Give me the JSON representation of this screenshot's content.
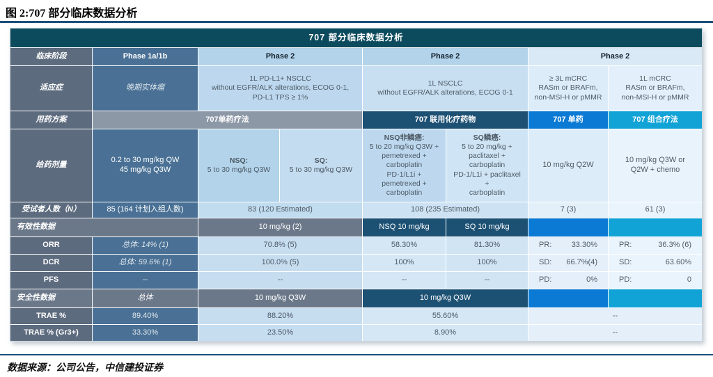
{
  "page": {
    "title": "图 2:707 部分临床数据分析",
    "source": "数据来源：公司公告，中信建投证券"
  },
  "colors": {
    "header_teal": "#0c4a5d",
    "navy": "#1d5174",
    "bright_blue": "#0b7ad4",
    "cyan": "#11a3d6",
    "steel_blue": "#4a7195",
    "label_gray": "#5d6b7e",
    "rule_navy": "#1f4e79"
  },
  "t": {
    "title": "707  部分临床数据分析",
    "phase": {
      "label": "临床阶段",
      "c1": "Phase 1a/1b",
      "g1": "Phase 2",
      "g2": "Phase 2",
      "g3": "Phase 2"
    },
    "ind": {
      "label": "适应症",
      "c1": "晚期实体瘤",
      "g1": "1L PD-L1+ NSCLC\nwithout EGFR/ALK alterations, ECOG 0-1,\nPD-L1 TPS ≥ 1%",
      "g2": "1L NSCLC\nwithout EGFR/ALK alterations, ECOG 0-1",
      "c6": "≥ 3L mCRC\nRASm or BRAFm,\nnon-MSI-H or pMMR",
      "c7": "1L mCRC\nRASm or BRAFm,\nnon-MSI-H or pMMR"
    },
    "reg": {
      "label": "用药方案",
      "mono": "707单药疗法",
      "combo": "707 联用化疗药物",
      "mcrc_mono": "707 单药",
      "mcrc_combo": "707 组合疗法"
    },
    "dose": {
      "label": "给药剂量",
      "c1": "0.2 to 30 mg/kg QW\n45 mg/kg Q3W",
      "nsq_h": "NSQ:",
      "nsq_b": "5 to 30 mg/kg Q3W",
      "sq_h": "SQ:",
      "sq_b": "5 to 30 mg/kg Q3W",
      "nsqc_h": "NSQ非鳞癌:",
      "nsqc_b": "5 to 20 mg/kg Q3W +\npemetrexed +\ncarboplatin\nPD-1/L1i +\npemetrexed +\ncarboplatin",
      "sqc_h": "SQ鳞癌:",
      "sqc_b": "5 to 20 mg/kg +\npaclitaxel +\ncarboplatin\nPD-1/L1i + paclitaxel\n+\ncarboplatin",
      "c6": "10 mg/kg Q2W",
      "c7": "10 mg/kg Q3W or\nQ2W + chemo"
    },
    "n": {
      "label": "受试者人数（N）",
      "c1": "85 (164 计划入组人数)",
      "g1": "83 (120 Estimated)",
      "g2": "108 (235 Estimated)",
      "c6": "7 (3)",
      "c7": "61 (3)"
    },
    "eff": {
      "label": "有效性数据",
      "g1": "10 mg/kg (2)",
      "nsq": "NSQ 10 mg/kg",
      "sq": "SQ 10 mg/kg"
    },
    "orr": {
      "label": "ORR",
      "c1": "总体: 14% (1)",
      "g1": "70.8% (5)",
      "c4": "58.30%",
      "c5": "81.30%",
      "k6": "PR:",
      "v6": "33.30%",
      "k7": "PR:",
      "v7": "36.3% (6)"
    },
    "dcr": {
      "label": "DCR",
      "c1": "总体: 59.6% (1)",
      "g1": "100.0% (5)",
      "c4": "100%",
      "c5": "100%",
      "k6": "SD:",
      "v6": "66.7%(4)",
      "k7": "SD:",
      "v7": "63.60%"
    },
    "pfs": {
      "label": "PFS",
      "c1": "--",
      "g1": "--",
      "c4": "--",
      "c5": "--",
      "k6": "PD:",
      "v6": "0%",
      "k7": "PD:",
      "v7": "0"
    },
    "saf": {
      "label": "安全性数据",
      "c1": "总体",
      "g1": "10 mg/kg Q3W",
      "g2": "10 mg/kg Q3W"
    },
    "trae": {
      "label": "TRAE %",
      "c1": "89.40%",
      "g1": "88.20%",
      "g2": "55.60%",
      "g3": "--"
    },
    "trae3": {
      "label": "TRAE % (Gr3+)",
      "c1": "33.30%",
      "g1": "23.50%",
      "g2": "8.90%",
      "g3": "--"
    }
  }
}
